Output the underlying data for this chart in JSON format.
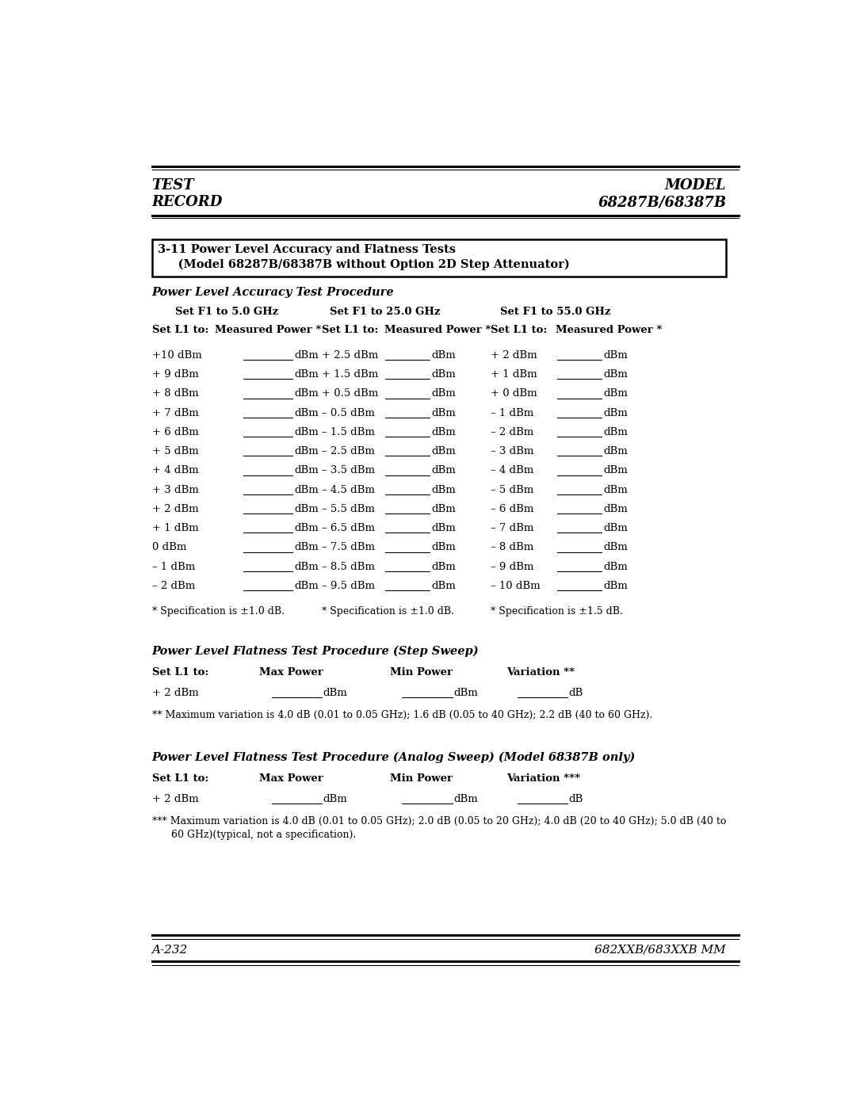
{
  "page_width": 10.8,
  "page_height": 13.97,
  "bg_color": "#ffffff",
  "header_left": [
    "TEST",
    "RECORD"
  ],
  "header_right": [
    "MODEL",
    "68287B/68387B"
  ],
  "footer_left": "A-232",
  "footer_right": "682XXB/683XXB MM",
  "box_title_line1": "3-11 Power Level Accuracy and Flatness Tests",
  "box_title_line2": "     (Model 68287B/68387B without Option 2D Step Attenuator)",
  "section1_title": "Power Level Accuracy Test Procedure",
  "col1_header": "Set F1 to 5.0 GHz",
  "col2_header": "Set F1 to 25.0 GHz",
  "col3_header": "Set F1 to 55.0 GHz",
  "subheader_l1": "Set L1 to:",
  "subheader_mp": "Measured Power *",
  "col1_l1": [
    "+10 dBm",
    "+ 9 dBm",
    "+ 8 dBm",
    "+ 7 dBm",
    "+ 6 dBm",
    "+ 5 dBm",
    "+ 4 dBm",
    "+ 3 dBm",
    "+ 2 dBm",
    "+ 1 dBm",
    "0 dBm",
    "– 1 dBm",
    "– 2 dBm"
  ],
  "col2_l1": [
    "+ 2.5 dBm",
    "+ 1.5 dBm",
    "+ 0.5 dBm",
    "– 0.5 dBm",
    "– 1.5 dBm",
    "– 2.5 dBm",
    "– 3.5 dBm",
    "– 4.5 dBm",
    "– 5.5 dBm",
    "– 6.5 dBm",
    "– 7.5 dBm",
    "– 8.5 dBm",
    "– 9.5 dBm"
  ],
  "col3_l1": [
    "+ 2 dBm",
    "+ 1 dBm",
    "+ 0 dBm",
    "– 1 dBm",
    "– 2 dBm",
    "– 3 dBm",
    "– 4 dBm",
    "– 5 dBm",
    "– 6 dBm",
    "– 7 dBm",
    "– 8 dBm",
    "– 9 dBm",
    "– 10 dBm"
  ],
  "spec1": "* Specification is ±1.0 dB.",
  "spec2": "* Specification is ±1.0 dB.",
  "spec3": "* Specification is ±1.5 dB.",
  "section2_title": "Power Level Flatness Test Procedure (Step Sweep)",
  "flat_header1": "Set L1 to:",
  "flat_header2": "Max Power",
  "flat_header3": "Min Power",
  "flat_header4": "Variation **",
  "flat_row1_l1": "+ 2 dBm",
  "flat_note": "** Maximum variation is 4.0 dB (0.01 to 0.05 GHz); 1.6 dB (0.05 to 40 GHz); 2.2 dB (40 to 60 GHz).",
  "section3_title": "Power Level Flatness Test Procedure (Analog Sweep) (Model 68387B only)",
  "flat2_header4": "Variation ***",
  "flat2_row1_l1": "+ 2 dBm",
  "flat2_note_line1": "*** Maximum variation is 4.0 dB (0.01 to 0.05 GHz); 2.0 dB (0.05 to 20 GHz); 4.0 dB (20 to 40 GHz); 5.0 dB (40 to",
  "flat2_note_line2": "      60 GHz)(typical, not a specification)."
}
